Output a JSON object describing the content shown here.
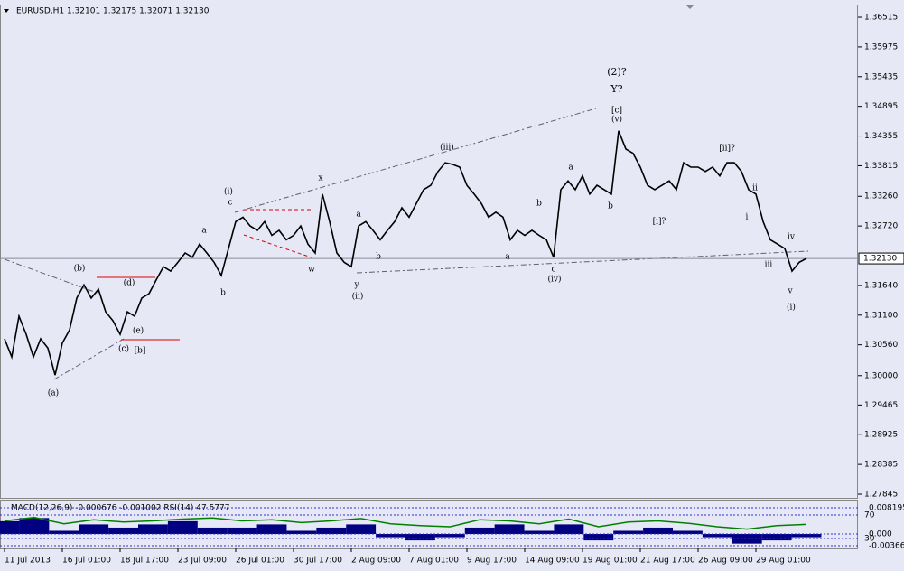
{
  "chart_data": [
    {
      "type": "line",
      "title": "EURUSD,H1  1.32101 1.32175 1.32071 1.32130",
      "color": "#000000",
      "price_label": "1.32130",
      "xlim": [
        -0.625,
        118.125
      ],
      "xticks": [
        {
          "value": 0,
          "label": "11 Jul 2013"
        },
        {
          "value": 8,
          "label": "16 Jul 01:00"
        },
        {
          "value": 16,
          "label": "18 Jul 17:00"
        },
        {
          "value": 24,
          "label": "23 Jul 09:00"
        },
        {
          "value": 32,
          "label": "26 Jul 01:00"
        },
        {
          "value": 40,
          "label": "30 Jul 17:00"
        },
        {
          "value": 48,
          "label": "2 Aug 09:00"
        },
        {
          "value": 56,
          "label": "7 Aug 01:00"
        },
        {
          "value": 64,
          "label": "9 Aug 17:00"
        },
        {
          "value": 72,
          "label": "14 Aug 09:00"
        },
        {
          "value": 80,
          "label": "19 Aug 01:00"
        },
        {
          "value": 88,
          "label": "21 Aug 17:00"
        },
        {
          "value": 96,
          "label": "26 Aug 09:00"
        },
        {
          "value": 104,
          "label": "29 Aug 01:00"
        }
      ],
      "ylim": [
        1.27796,
        1.36696
      ],
      "yticks": [
        1.36515,
        1.35975,
        1.35435,
        1.34895,
        1.34355,
        1.33815,
        {
          "value": 1.3326,
          "label": "1.33260"
        },
        {
          "value": 1.3272,
          "label": "1.32720"
        },
        {
          "value": 1.3164,
          "label": "1.31640"
        },
        {
          "value": 1.311,
          "label": "1.31100"
        },
        {
          "value": 1.3056,
          "label": "1.30560"
        },
        {
          "value": 1.3,
          "label": "1.30000"
        },
        1.29465,
        1.28925,
        1.28385,
        1.27845
      ],
      "values": [
        1.3067,
        1.3034,
        1.3108,
        1.3075,
        1.3034,
        1.3067,
        1.305,
        1.3001,
        1.3059,
        1.3083,
        1.3141,
        1.3165,
        1.3141,
        1.3157,
        1.3116,
        1.31,
        1.3075,
        1.3116,
        1.3108,
        1.3141,
        1.3149,
        1.3174,
        1.3198,
        1.319,
        1.3206,
        1.3223,
        1.3215,
        1.3239,
        1.3223,
        1.3206,
        1.3182,
        1.3231,
        1.328,
        1.3288,
        1.3272,
        1.3264,
        1.328,
        1.3255,
        1.3264,
        1.3247,
        1.3255,
        1.3272,
        1.3239,
        1.3223,
        1.333,
        1.328,
        1.3223,
        1.3206,
        1.3198,
        1.3272,
        1.328,
        1.3264,
        1.3247,
        1.3264,
        1.328,
        1.3305,
        1.3288,
        1.3313,
        1.3338,
        1.3346,
        1.3371,
        1.3387,
        1.3384,
        1.3379,
        1.3346,
        1.333,
        1.3313,
        1.3288,
        1.3297,
        1.3288,
        1.3247,
        1.3264,
        1.3255,
        1.3264,
        1.3255,
        1.3247,
        1.3215,
        1.3338,
        1.3354,
        1.3338,
        1.3363,
        1.333,
        1.3346,
        1.3338,
        1.333,
        1.3445,
        1.3412,
        1.3404,
        1.3379,
        1.3346,
        1.3338,
        1.3346,
        1.3354,
        1.3338,
        1.3387,
        1.3379,
        1.3379,
        1.3371,
        1.3379,
        1.3363,
        1.3387,
        1.3387,
        1.3371,
        1.3338,
        1.333,
        1.328,
        1.3247,
        1.3239,
        1.3231,
        1.319,
        1.3206,
        1.3213
      ],
      "annotations": [
        {
          "text": "(2)?",
          "color": "#800080"
        },
        {
          "text": "Y?",
          "color": "#008000"
        },
        {
          "text": "[c]",
          "color": "#e00000"
        },
        {
          "text": "(v)",
          "color": "#202080"
        },
        {
          "text": "(iii)",
          "color": "#202080"
        },
        {
          "text": "x",
          "color": "#e08000"
        },
        {
          "text": "(i)",
          "color": "#202080"
        },
        {
          "text": "c",
          "color": "#e08000"
        },
        {
          "text": "a",
          "color": "#e08000"
        },
        {
          "text": "b",
          "color": "#e08000"
        },
        {
          "text": "(b)",
          "color": "#202080"
        },
        {
          "text": "(d)",
          "color": "#202080"
        },
        {
          "text": "(e)",
          "color": "#202080"
        },
        {
          "text": "(c)",
          "color": "#202080"
        },
        {
          "text": "[b]",
          "color": "#e00000"
        },
        {
          "text": "(a)",
          "color": "#202080"
        },
        {
          "text": "w",
          "color": "#e08000"
        },
        {
          "text": "a",
          "color": "#e08000"
        },
        {
          "text": "b",
          "color": "#e08000"
        },
        {
          "text": "y",
          "color": "#e08000"
        },
        {
          "text": "(ii)",
          "color": "#202080"
        },
        {
          "text": "a",
          "color": "#e08000"
        },
        {
          "text": "b",
          "color": "#e08000"
        },
        {
          "text": "c",
          "color": "#e08000"
        },
        {
          "text": "(iv)",
          "color": "#202080"
        },
        {
          "text": "a",
          "color": "#e08000"
        },
        {
          "text": "b",
          "color": "#e08000"
        },
        {
          "text": "[i]?",
          "color": "#e00000"
        },
        {
          "text": "[ii]?",
          "color": "#e00000"
        },
        {
          "text": "ii",
          "color": "#e08000"
        },
        {
          "text": "i",
          "color": "#e08000"
        },
        {
          "text": "iii",
          "color": "#e08000"
        },
        {
          "text": "iv",
          "color": "#e08000"
        },
        {
          "text": "v",
          "color": "#e08000"
        },
        {
          "text": "(i)",
          "color": "#202080"
        }
      ]
    },
    {
      "type": "indicator",
      "title": "MACD(12,26,9) -0.000676 -0.001002  RSI(14) 47.5777",
      "ylim": [
        17.7,
        82.3
      ],
      "yticks": [
        70,
        30
      ],
      "y2lim": [
        -0.003662,
        0.008195
      ],
      "y2ticks": [
        0.008195,
        {
          "value": 0,
          "label": "0.000"
        },
        -0.003662
      ],
      "series": [
        {
          "color": "#008000",
          "values": [
            60,
            66,
            55,
            62,
            58,
            60,
            63,
            65,
            60,
            62,
            57,
            60,
            64,
            55,
            52,
            50,
            62,
            60,
            55,
            63,
            50,
            58,
            60,
            56,
            50,
            46,
            52,
            54
          ]
        },
        {
          "color": "#000080",
          "axis": "y2",
          "values": [
            0.004,
            0.005,
            0.001,
            0.003,
            0.002,
            0.003,
            0.004,
            0.002,
            0.002,
            0.003,
            0.001,
            0.002,
            0.003,
            -0.001,
            -0.002,
            -0.001,
            0.002,
            0.003,
            0.001,
            0.003,
            -0.002,
            0.001,
            0.002,
            0.001,
            -0.001,
            -0.003,
            -0.002,
            -0.001
          ]
        }
      ]
    }
  ]
}
